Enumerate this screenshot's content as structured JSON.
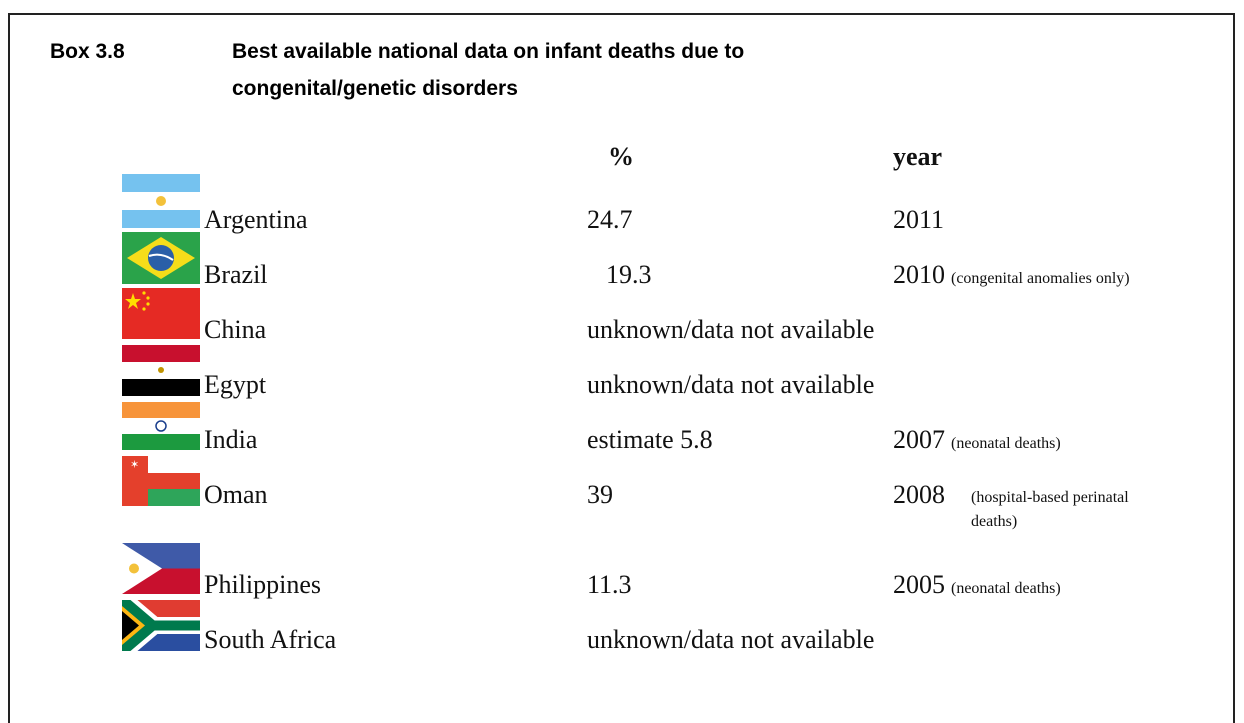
{
  "box": {
    "label": "Box 3.8",
    "title_lines": [
      "Best available national data on infant deaths due to",
      "congenital/genetic disorders"
    ]
  },
  "table": {
    "headers": [
      "%",
      "year"
    ],
    "rows": [
      {
        "country": "Argentina",
        "percent": "24.7",
        "year": "2011"
      },
      {
        "country": "Brazil",
        "percent": "19.3",
        "year": "2010",
        "note": "(congenital anomalies only)"
      },
      {
        "country": "China",
        "percent": "unknown/data not available"
      },
      {
        "country": "Egypt",
        "percent": "unknown/data not available"
      },
      {
        "country": "India",
        "percent": "estimate 5.8",
        "year": "2007",
        "note": "(neonatal deaths)"
      },
      {
        "country": "Oman",
        "percent": "39",
        "year": "2008",
        "note": "(hospital-based perinatal deaths)"
      },
      {
        "country": "Philippines",
        "percent": "11.3",
        "year": "2005",
        "note": "(neonatal deaths)"
      },
      {
        "country": "South Africa",
        "percent": "unknown/data not available"
      }
    ]
  }
}
